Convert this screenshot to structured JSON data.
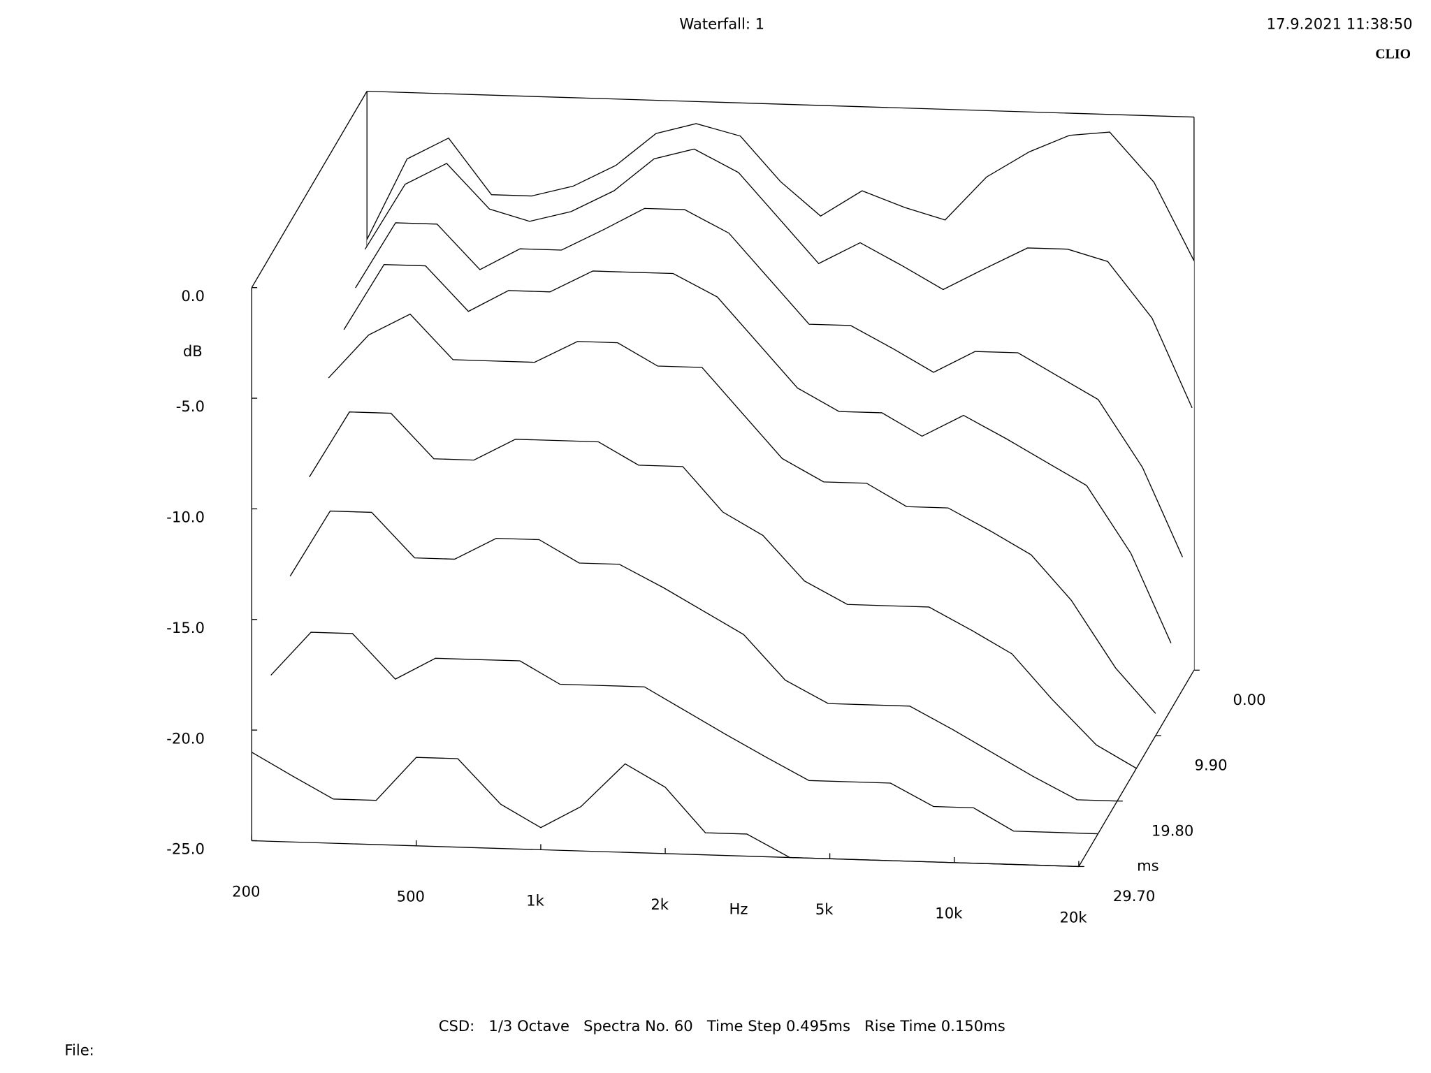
{
  "chart_data": {
    "type": "waterfall",
    "title": "Waterfall: 1",
    "timestamp": "17.9.2021 11:38:50",
    "brand": "CLIO",
    "footer": "CSD:   1/3 Octave   Spectra No. 60   Time Step 0.495ms   Rise Time 0.150ms",
    "file_label": "File:",
    "x_label": "Hz",
    "y_label": "dB",
    "z_label": "ms",
    "x_log": true,
    "color": "#000000",
    "xlim": [
      200,
      20000
    ],
    "xticks": [
      200,
      500,
      {
        "value": 1000,
        "label": "1k"
      },
      {
        "value": 2000,
        "label": "2k"
      },
      {
        "value": 5000,
        "label": "5k"
      },
      {
        "value": 10000,
        "label": "10k"
      },
      {
        "value": 20000,
        "label": "20k"
      }
    ],
    "ylim": [
      -25,
      0
    ],
    "yticks": [
      {
        "value": 0,
        "label": "0.0"
      },
      {
        "value": -5,
        "label": "-5.0"
      },
      {
        "value": -10,
        "label": "-10.0"
      },
      {
        "value": -15,
        "label": "-15.0"
      },
      {
        "value": -20,
        "label": "-20.0"
      },
      {
        "value": -25,
        "label": "-25.0"
      }
    ],
    "zlim": [
      0,
      29.7
    ],
    "zticks": [
      {
        "value": 0,
        "label": "0.00"
      },
      {
        "value": 9.9,
        "label": "9.90"
      },
      {
        "value": 19.8,
        "label": "19.80"
      },
      {
        "value": 29.7,
        "label": "29.70"
      }
    ],
    "x": [
      200,
      250,
      315,
      400,
      500,
      630,
      800,
      1000,
      1250,
      1600,
      2000,
      2500,
      3150,
      4000,
      5000,
      6300,
      8000,
      10000,
      12500,
      16000,
      20000
    ],
    "z": [
      0,
      0.495,
      2.97,
      5.94,
      9.9,
      14.85,
      19.8,
      24.75,
      29.7
    ],
    "series": [
      {
        "values": [
          -6.7,
          -3,
          -2,
          -4.5,
          -4.5,
          -4,
          -3,
          -1.5,
          -1,
          -1.5,
          -3.5,
          -5,
          -3.8,
          -4.5,
          -5,
          -3,
          -1.8,
          -1,
          -0.8,
          -3,
          -6.5
        ]
      },
      {
        "values": [
          -7,
          -4,
          -3,
          -5,
          -5.5,
          -5,
          -4,
          -2.5,
          -2,
          -3,
          -5,
          -7,
          -6,
          -7,
          -8,
          -7,
          -6,
          -6,
          -6.5,
          -9,
          -13
        ]
      },
      {
        "values": [
          -8,
          -5,
          -5,
          -7,
          -6,
          -6,
          -5,
          -4,
          -4,
          -5,
          -7,
          -9,
          -9,
          -10,
          -11,
          -10,
          -10,
          -11,
          -12,
          -15,
          -19
        ]
      },
      {
        "values": [
          -9,
          -6,
          -6,
          -8,
          -7,
          -7,
          -6,
          -6,
          -6,
          -7,
          -9,
          -11,
          -12,
          -12,
          -13,
          -12,
          -13,
          -14,
          -15,
          -18,
          -22
        ]
      },
      {
        "values": [
          -10,
          -8,
          -7,
          -9,
          -9,
          -9,
          -8,
          -8,
          -9,
          -9,
          -11,
          -13,
          -14,
          -14,
          -15,
          -15,
          -16,
          -17,
          -19,
          -22,
          -24
        ]
      },
      {
        "values": [
          -13,
          -10,
          -10,
          -12,
          -12,
          -11,
          -11,
          -11,
          -12,
          -12,
          -14,
          -15,
          -17,
          -18,
          -18,
          -18,
          -19,
          -20,
          -22,
          -24,
          -25
        ]
      },
      {
        "values": [
          -16,
          -13,
          -13,
          -15,
          -15,
          -14,
          -14,
          -15,
          -15,
          -16,
          -17,
          -18,
          -20,
          -21,
          -21,
          -21,
          -22,
          -23,
          -24,
          -25,
          -25
        ]
      },
      {
        "values": [
          -19,
          -17,
          -17,
          -19,
          -18,
          -18,
          -18,
          -19,
          -19,
          -19,
          -20,
          -21,
          -22,
          -23,
          -23,
          -23,
          -24,
          -24,
          -25,
          -25,
          -25
        ]
      },
      {
        "values": [
          -21,
          -22,
          -23,
          -23,
          -21,
          -21,
          -23,
          -24,
          -23,
          -21,
          -22,
          -24,
          -24,
          -25,
          -25,
          -25,
          -25,
          -25,
          -25,
          -25,
          -25
        ]
      }
    ]
  }
}
